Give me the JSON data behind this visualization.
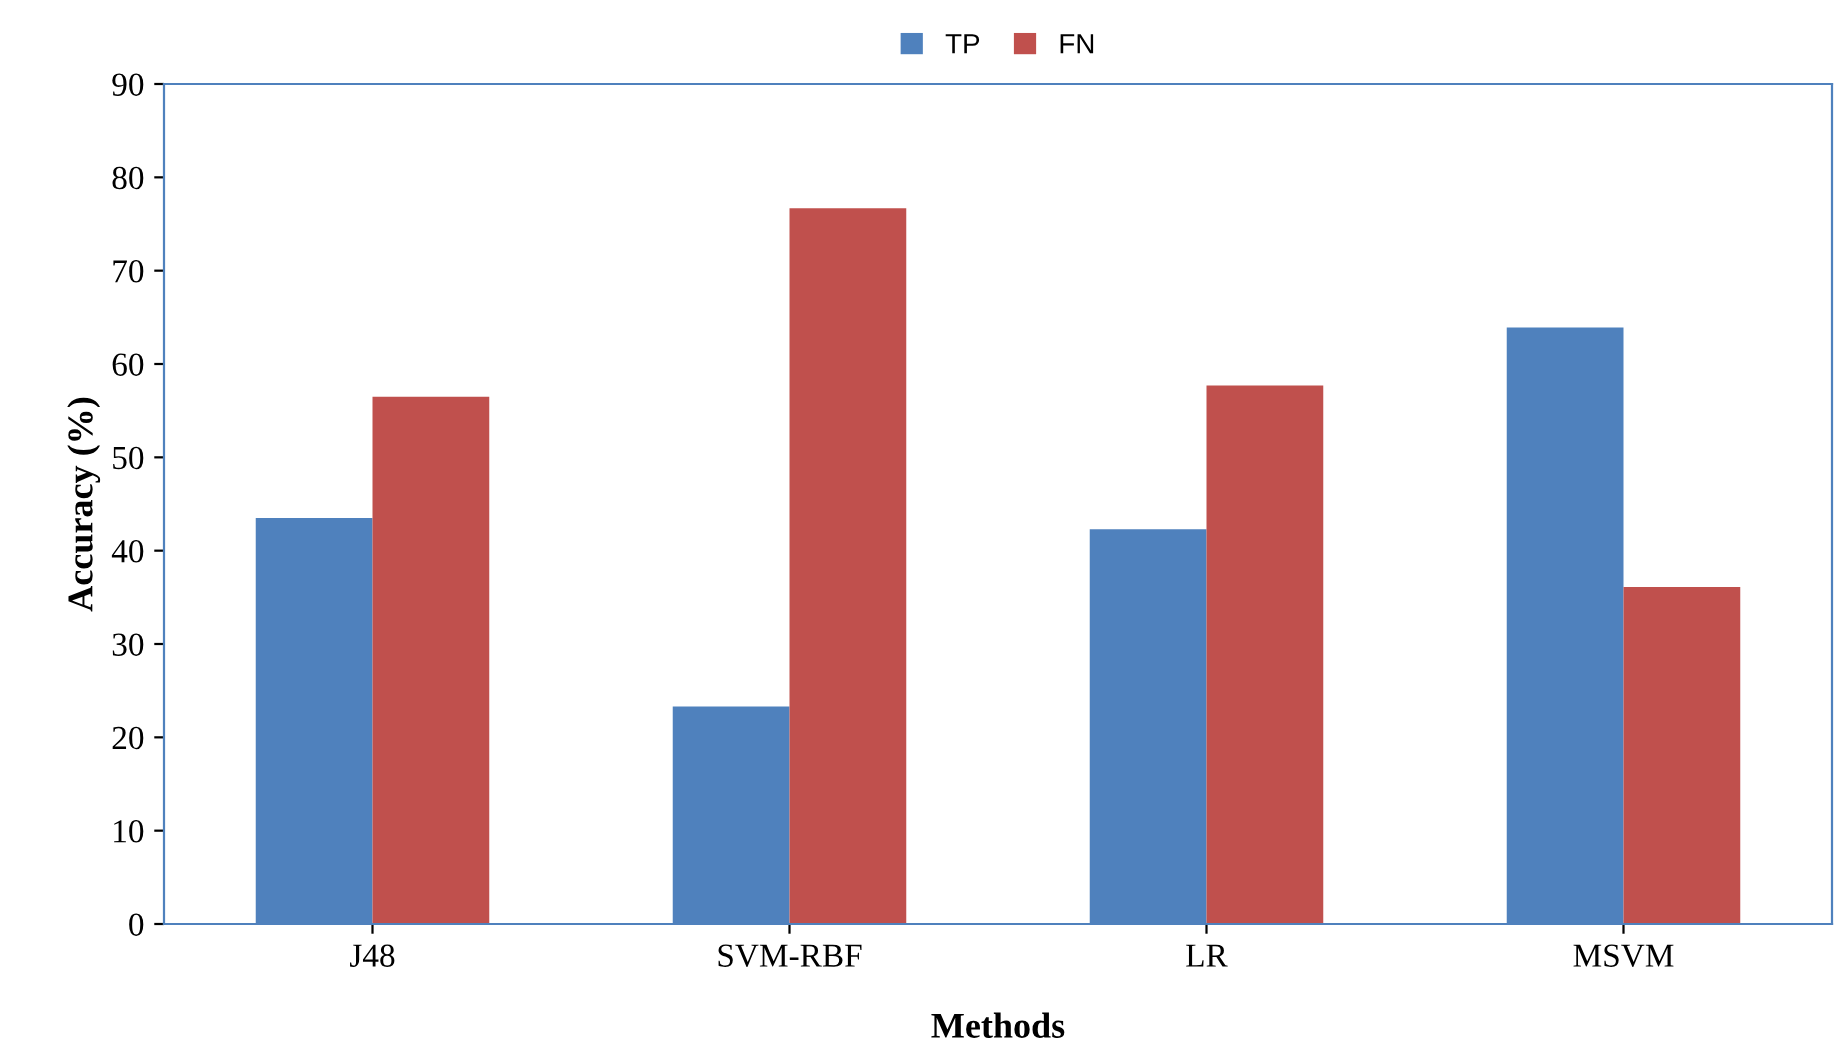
{
  "chart_data": {
    "type": "bar",
    "xlabel": "Methods",
    "ylabel": "Accuracy (%)",
    "categories": [
      "J48",
      "SVM-RBF",
      "LR",
      "MSVM"
    ],
    "series": [
      {
        "name": "TP",
        "color": "#4f81bd",
        "values": [
          43.5,
          23.3,
          42.3,
          63.9
        ]
      },
      {
        "name": "FN",
        "color": "#c0504d",
        "values": [
          56.5,
          76.7,
          57.7,
          36.1
        ]
      }
    ],
    "ylim": [
      0,
      90
    ],
    "yticks": [
      0,
      10,
      20,
      30,
      40,
      50,
      60,
      70,
      80,
      90
    ],
    "grid": false,
    "legend": "top"
  }
}
